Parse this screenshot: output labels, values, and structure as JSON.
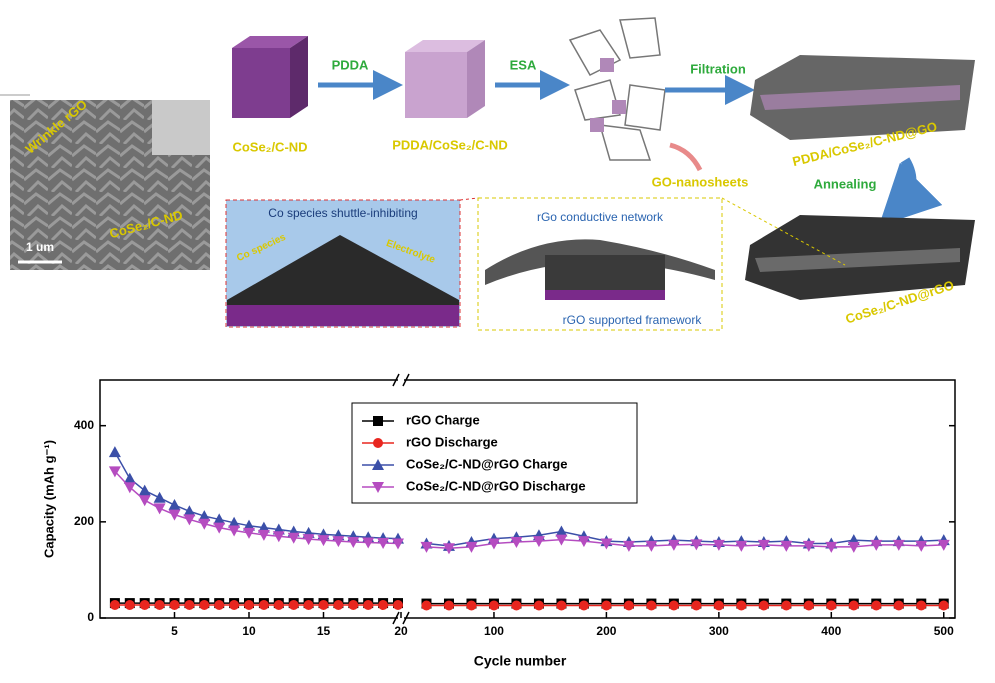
{
  "diagram": {
    "sem": {
      "wrinkle": "Wrinkle rGO",
      "particles": "CoSe₂/C-ND",
      "scale": "1 um"
    },
    "steps": {
      "cube1": "CoSe₂/C-ND",
      "pdda": "PDDA",
      "cube2": "PDDA/CoSe₂/C-ND",
      "esa": "ESA",
      "go": "GO-nanosheets",
      "filtration": "Filtration",
      "stack1": "PDDA/CoSe₂/C-ND@GO",
      "annealing": "Annealing",
      "stack2": "CoSe₂/C-ND@rGO"
    },
    "inset1": {
      "title": "Co species shuttle-inhibiting",
      "co": "Co species",
      "electrolyte": "Electrolyte"
    },
    "inset2": {
      "top": "rGo conductive network",
      "bottom": "rGO supported framework"
    }
  },
  "chart_data": {
    "type": "line",
    "x_label": "Cycle number",
    "y_label": "Capacity (mAh g⁻¹)",
    "x": [
      1,
      2,
      3,
      4,
      5,
      6,
      7,
      8,
      9,
      10,
      11,
      12,
      13,
      14,
      15,
      16,
      17,
      18,
      19,
      20,
      40,
      60,
      80,
      100,
      120,
      140,
      160,
      180,
      200,
      220,
      240,
      260,
      280,
      300,
      320,
      340,
      360,
      380,
      400,
      420,
      440,
      460,
      480,
      500
    ],
    "x_break": 20,
    "xlim": [
      0,
      510
    ],
    "ylim": [
      0,
      495
    ],
    "xticks": [
      5,
      10,
      15,
      20,
      100,
      200,
      300,
      400,
      500
    ],
    "yticks": [
      0,
      200,
      400
    ],
    "legend": "upper-left",
    "series": [
      {
        "name": "rGO Charge",
        "color": "#000000",
        "marker": "square",
        "values": [
          31,
          31,
          31,
          31,
          31,
          31,
          31,
          31,
          31,
          31,
          31,
          31,
          31,
          31,
          31,
          31,
          31,
          31,
          31,
          31,
          30,
          30,
          30,
          30,
          30,
          30,
          30,
          30,
          30,
          30,
          30,
          30,
          30,
          30,
          30,
          30,
          30,
          30,
          30,
          30,
          30,
          30,
          30,
          30
        ]
      },
      {
        "name": "rGO Discharge",
        "color": "#e8261f",
        "marker": "circle",
        "values": [
          27,
          27,
          27,
          27,
          27,
          27,
          27,
          27,
          27,
          27,
          27,
          27,
          27,
          27,
          27,
          27,
          27,
          27,
          27,
          27,
          26,
          26,
          26,
          26,
          26,
          26,
          26,
          26,
          26,
          26,
          26,
          26,
          26,
          26,
          26,
          26,
          26,
          26,
          26,
          26,
          26,
          26,
          26,
          26
        ]
      },
      {
        "name": "CoSe₂/C-ND@rGO Charge",
        "color": "#3b4fa8",
        "marker": "triangle-up",
        "values": [
          345,
          290,
          265,
          250,
          235,
          222,
          212,
          205,
          198,
          192,
          188,
          184,
          180,
          177,
          174,
          172,
          170,
          168,
          166,
          165,
          155,
          150,
          158,
          165,
          168,
          172,
          180,
          170,
          160,
          158,
          160,
          162,
          160,
          158,
          160,
          158,
          160,
          155,
          155,
          162,
          160,
          160,
          160,
          162
        ]
      },
      {
        "name": "CoSe₂/C-ND@rGO Discharge",
        "color": "#b54cc0",
        "marker": "triangle-down",
        "values": [
          305,
          272,
          245,
          228,
          215,
          205,
          196,
          188,
          182,
          177,
          173,
          170,
          167,
          164,
          162,
          160,
          158,
          157,
          156,
          155,
          148,
          145,
          148,
          155,
          158,
          160,
          163,
          160,
          155,
          150,
          150,
          152,
          153,
          152,
          150,
          152,
          150,
          150,
          148,
          148,
          152,
          152,
          150,
          152
        ]
      }
    ]
  }
}
